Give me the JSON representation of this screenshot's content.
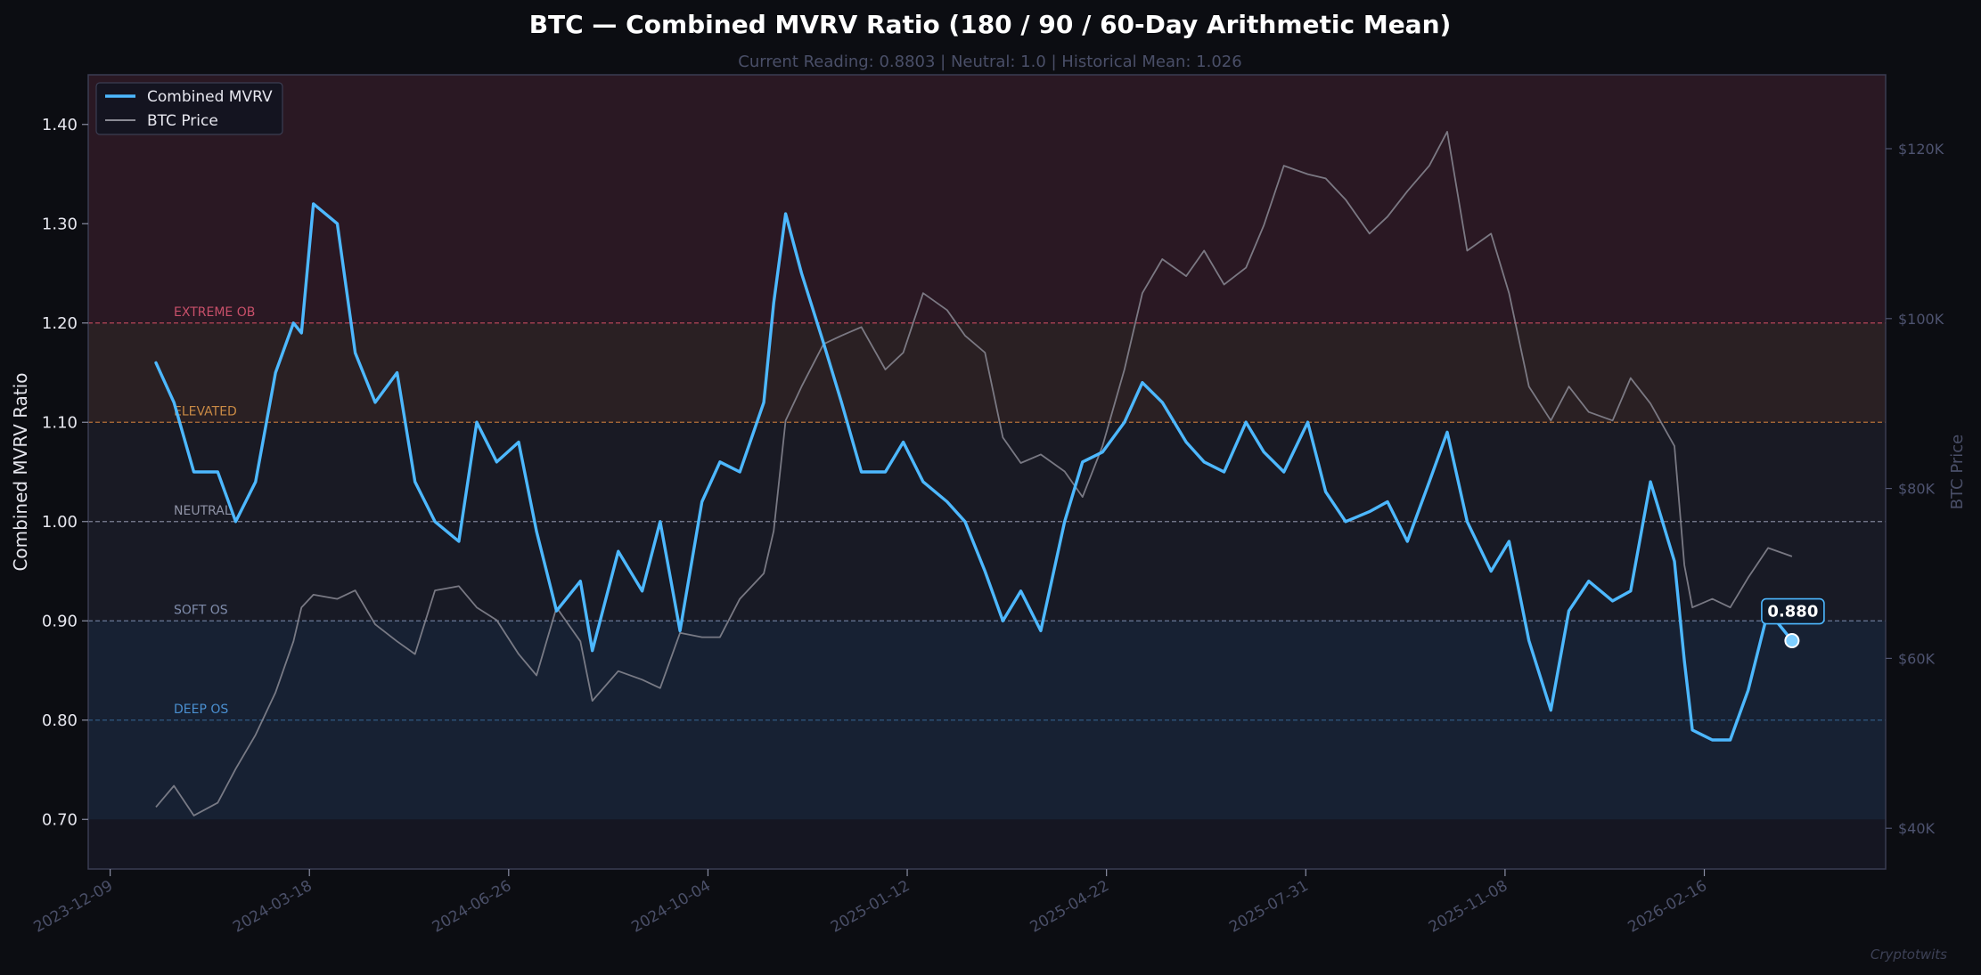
{
  "chart_data": {
    "type": "line",
    "title": "BTC — Combined MVRV Ratio (180 / 90 / 60-Day Arithmetic Mean)",
    "subtitle": "Current Reading: 0.8803  |  Neutral: 1.0  |  Historical Mean: 1.026",
    "ylabel": "Combined MVRV Ratio",
    "y2label": "BTC Price",
    "ylim": [
      0.65,
      1.45
    ],
    "y2lim": [
      35200,
      128700
    ],
    "xlim": [
      "2023-11-28",
      "2026-05-18"
    ],
    "yticks": [
      0.7,
      0.8,
      0.9,
      1.0,
      1.1,
      1.2,
      1.3,
      1.4
    ],
    "ytick_labels": [
      "0.70",
      "0.80",
      "0.90",
      "1.00",
      "1.10",
      "1.20",
      "1.30",
      "1.40"
    ],
    "y2ticks": [
      40000,
      60000,
      80000,
      100000,
      120000
    ],
    "y2tick_labels": [
      "$40K",
      "$60K",
      "$80K",
      "$100K",
      "$120K"
    ],
    "xticks": [
      "2023-12-09",
      "2024-03-18",
      "2024-06-26",
      "2024-10-04",
      "2025-01-12",
      "2025-04-22",
      "2025-07-31",
      "2025-11-08",
      "2026-02-16"
    ],
    "grid": false,
    "legend_position": "top-left",
    "zones": [
      {
        "label": "EXTREME OB",
        "level": 1.2,
        "from": 1.2,
        "to": 1.45,
        "fill": "#2a1823",
        "line_color": "#b8475a",
        "text_color": "#c8506a"
      },
      {
        "label": "ELEVATED",
        "level": 1.1,
        "from": 1.1,
        "to": 1.2,
        "fill": "#2a2023",
        "line_color": "#b36f38",
        "text_color": "#c98a45"
      },
      {
        "label": "NEUTRAL",
        "level": 1.0,
        "from": 1.0,
        "to": 1.1,
        "fill": "#191a24",
        "line_color": "#7c8195",
        "text_color": "#8f93a6"
      },
      {
        "label": "SOFT OS",
        "level": 0.9,
        "from": 0.9,
        "to": 1.0,
        "fill": "#181a25",
        "line_color": "#6a7896",
        "text_color": "#7f8cab"
      },
      {
        "label": "DEEP OS",
        "level": 0.8,
        "from": 0.7,
        "to": 0.9,
        "fill": "#172133",
        "line_color": "#2f5a82",
        "text_color": "#4a8fd0"
      }
    ],
    "series": [
      {
        "name": "Combined MVRV",
        "axis": "left",
        "color": "#4db8ff",
        "x": [
          "2024-01-01",
          "2024-01-10",
          "2024-01-20",
          "2024-02-01",
          "2024-02-10",
          "2024-02-20",
          "2024-03-01",
          "2024-03-10",
          "2024-03-14",
          "2024-03-20",
          "2024-04-01",
          "2024-04-10",
          "2024-04-20",
          "2024-05-01",
          "2024-05-10",
          "2024-05-20",
          "2024-06-01",
          "2024-06-10",
          "2024-06-20",
          "2024-07-01",
          "2024-07-10",
          "2024-07-20",
          "2024-08-01",
          "2024-08-07",
          "2024-08-20",
          "2024-09-01",
          "2024-09-10",
          "2024-09-20",
          "2024-10-01",
          "2024-10-10",
          "2024-10-20",
          "2024-11-01",
          "2024-11-06",
          "2024-11-12",
          "2024-11-20",
          "2024-12-01",
          "2024-12-10",
          "2024-12-20",
          "2025-01-01",
          "2025-01-10",
          "2025-01-20",
          "2025-02-01",
          "2025-02-10",
          "2025-02-20",
          "2025-03-01",
          "2025-03-10",
          "2025-03-20",
          "2025-04-01",
          "2025-04-10",
          "2025-04-20",
          "2025-05-01",
          "2025-05-10",
          "2025-05-20",
          "2025-06-01",
          "2025-06-10",
          "2025-06-20",
          "2025-07-01",
          "2025-07-10",
          "2025-07-20",
          "2025-08-01",
          "2025-08-10",
          "2025-08-20",
          "2025-09-01",
          "2025-09-10",
          "2025-09-20",
          "2025-10-01",
          "2025-10-10",
          "2025-10-20",
          "2025-11-01",
          "2025-11-10",
          "2025-11-20",
          "2025-12-01",
          "2025-12-10",
          "2025-12-20",
          "2026-01-01",
          "2026-01-10",
          "2026-01-20",
          "2026-02-01",
          "2026-02-06",
          "2026-02-10",
          "2026-02-20",
          "2026-03-01",
          "2026-03-10",
          "2026-03-20",
          "2026-04-01"
        ],
        "values": [
          1.16,
          1.12,
          1.05,
          1.05,
          1.0,
          1.04,
          1.15,
          1.2,
          1.19,
          1.32,
          1.3,
          1.17,
          1.12,
          1.15,
          1.04,
          1.0,
          0.98,
          1.1,
          1.06,
          1.08,
          0.99,
          0.91,
          0.94,
          0.87,
          0.97,
          0.93,
          1.0,
          0.89,
          1.02,
          1.06,
          1.05,
          1.12,
          1.22,
          1.31,
          1.25,
          1.18,
          1.12,
          1.05,
          1.05,
          1.08,
          1.04,
          1.02,
          1.0,
          0.95,
          0.9,
          0.93,
          0.89,
          1.0,
          1.06,
          1.07,
          1.1,
          1.14,
          1.12,
          1.08,
          1.06,
          1.05,
          1.1,
          1.07,
          1.05,
          1.1,
          1.03,
          1.0,
          1.01,
          1.02,
          0.98,
          1.04,
          1.09,
          1.0,
          0.95,
          0.98,
          0.88,
          0.81,
          0.91,
          0.94,
          0.92,
          0.93,
          1.04,
          0.96,
          0.86,
          0.79,
          0.78,
          0.78,
          0.83,
          0.91,
          0.88
        ]
      },
      {
        "name": "BTC Price",
        "axis": "right",
        "color": "#8a8a94",
        "x": [
          "2024-01-01",
          "2024-01-10",
          "2024-01-20",
          "2024-02-01",
          "2024-02-10",
          "2024-02-20",
          "2024-03-01",
          "2024-03-10",
          "2024-03-14",
          "2024-03-20",
          "2024-04-01",
          "2024-04-10",
          "2024-04-20",
          "2024-05-01",
          "2024-05-10",
          "2024-05-20",
          "2024-06-01",
          "2024-06-10",
          "2024-06-20",
          "2024-07-01",
          "2024-07-10",
          "2024-07-20",
          "2024-08-01",
          "2024-08-07",
          "2024-08-20",
          "2024-09-01",
          "2024-09-10",
          "2024-09-20",
          "2024-10-01",
          "2024-10-10",
          "2024-10-20",
          "2024-11-01",
          "2024-11-06",
          "2024-11-12",
          "2024-11-20",
          "2024-12-01",
          "2024-12-10",
          "2024-12-20",
          "2025-01-01",
          "2025-01-10",
          "2025-01-20",
          "2025-02-01",
          "2025-02-10",
          "2025-02-20",
          "2025-03-01",
          "2025-03-10",
          "2025-03-20",
          "2025-04-01",
          "2025-04-10",
          "2025-04-20",
          "2025-05-01",
          "2025-05-10",
          "2025-05-20",
          "2025-06-01",
          "2025-06-10",
          "2025-06-20",
          "2025-07-01",
          "2025-07-10",
          "2025-07-20",
          "2025-08-01",
          "2025-08-10",
          "2025-08-20",
          "2025-09-01",
          "2025-09-10",
          "2025-09-20",
          "2025-10-01",
          "2025-10-10",
          "2025-10-20",
          "2025-11-01",
          "2025-11-10",
          "2025-11-20",
          "2025-12-01",
          "2025-12-10",
          "2025-12-20",
          "2026-01-01",
          "2026-01-10",
          "2026-01-20",
          "2026-02-01",
          "2026-02-06",
          "2026-02-10",
          "2026-02-20",
          "2026-03-01",
          "2026-03-10",
          "2026-03-20",
          "2026-04-01"
        ],
        "values": [
          42500,
          45000,
          41500,
          43000,
          47000,
          51000,
          56000,
          62000,
          66000,
          67500,
          67000,
          68000,
          64000,
          62000,
          60500,
          68000,
          68500,
          66000,
          64500,
          60500,
          58000,
          66000,
          62000,
          55000,
          58500,
          57500,
          56500,
          63000,
          62500,
          62500,
          67000,
          70000,
          75000,
          88000,
          92000,
          97000,
          98000,
          99000,
          94000,
          96000,
          103000,
          101000,
          98000,
          96000,
          86000,
          83000,
          84000,
          82000,
          79000,
          85000,
          94000,
          103000,
          107000,
          105000,
          108000,
          104000,
          106000,
          111000,
          118000,
          117000,
          116500,
          114000,
          110000,
          112000,
          115000,
          118000,
          122000,
          108000,
          110000,
          103000,
          92000,
          88000,
          92000,
          89000,
          88000,
          93000,
          90000,
          85000,
          71000,
          66000,
          67000,
          66000,
          69500,
          73000,
          72000
        ]
      }
    ],
    "current": {
      "date": "2026-04-01",
      "value": 0.88,
      "label": "0.880"
    },
    "watermark": "Cryptotwits"
  }
}
